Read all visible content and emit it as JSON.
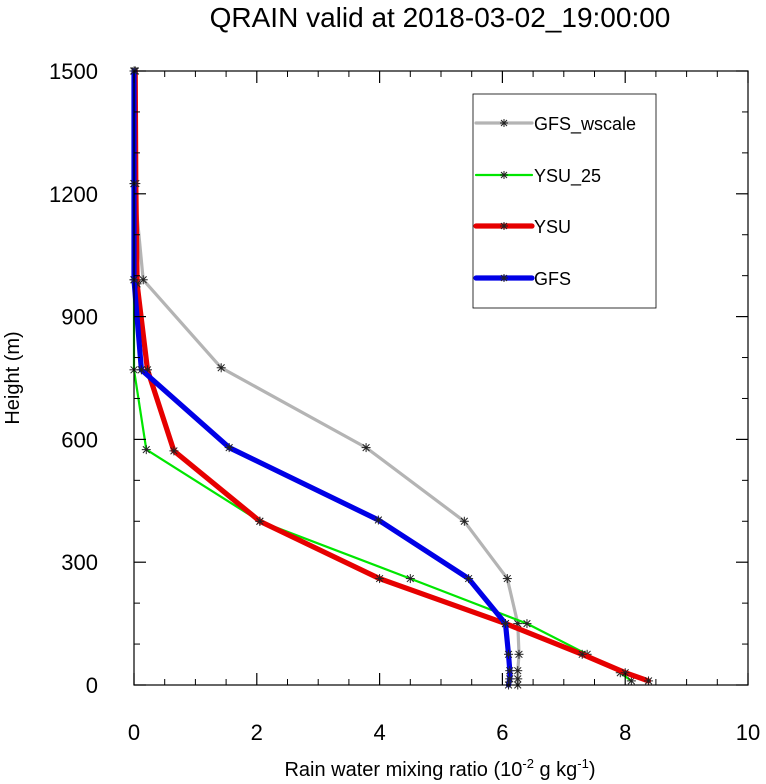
{
  "chart_data": {
    "type": "line",
    "title": "QRAIN valid at 2018-03-02_19:00:00",
    "xlabel_main": "Rain water mixing ratio (10",
    "xlabel_exp1": "-2",
    "xlabel_mid": " g kg",
    "xlabel_exp2": "-1",
    "xlabel_end": ")",
    "ylabel": "Height (m)",
    "xlim": [
      0,
      10
    ],
    "ylim": [
      0,
      1500
    ],
    "x_ticks": [
      0,
      2,
      4,
      6,
      8,
      10
    ],
    "x_tick_labels": [
      "0",
      "2",
      "4",
      "6",
      "8",
      "10"
    ],
    "y_ticks": [
      0,
      300,
      600,
      900,
      1200,
      1500
    ],
    "y_tick_labels": [
      "0",
      "300",
      "600",
      "900",
      "1200",
      "1500"
    ],
    "grid": false,
    "legend_position": "top-right",
    "series": [
      {
        "name": "GFS_wscale",
        "color": "#b4b4b4",
        "x": [
          6.25,
          6.25,
          6.25,
          6.27,
          6.25,
          6.08,
          5.38,
          3.78,
          1.42,
          0.15,
          0.0,
          0.0,
          0.02
        ],
        "y": [
          0,
          15,
          35,
          75,
          150,
          260,
          400,
          580,
          775,
          990,
          1225,
          1500,
          1500
        ]
      },
      {
        "name": "YSU_25",
        "color": "#00e600",
        "x": [
          8.1,
          7.92,
          7.38,
          6.4,
          4.5,
          2.05,
          0.2,
          0.0,
          0.0,
          0.0,
          0.0,
          0.0
        ],
        "y": [
          10,
          30,
          75,
          150,
          260,
          400,
          575,
          770,
          990,
          1225,
          1500,
          1500
        ]
      },
      {
        "name": "YSU",
        "color": "#e60000",
        "x": [
          8.38,
          8.0,
          7.3,
          6.05,
          4.0,
          2.05,
          0.65,
          0.22,
          0.05,
          0.03,
          0.02
        ],
        "y": [
          10,
          30,
          75,
          150,
          260,
          400,
          572,
          770,
          980,
          1225,
          1500
        ]
      },
      {
        "name": "GFS",
        "color": "#0000e6",
        "x": [
          6.1,
          6.12,
          6.12,
          6.1,
          6.05,
          5.45,
          3.98,
          1.55,
          0.12,
          0.0,
          0.0,
          0.0
        ],
        "y": [
          0,
          15,
          35,
          75,
          150,
          260,
          403,
          580,
          770,
          990,
          1225,
          1500
        ]
      }
    ]
  }
}
